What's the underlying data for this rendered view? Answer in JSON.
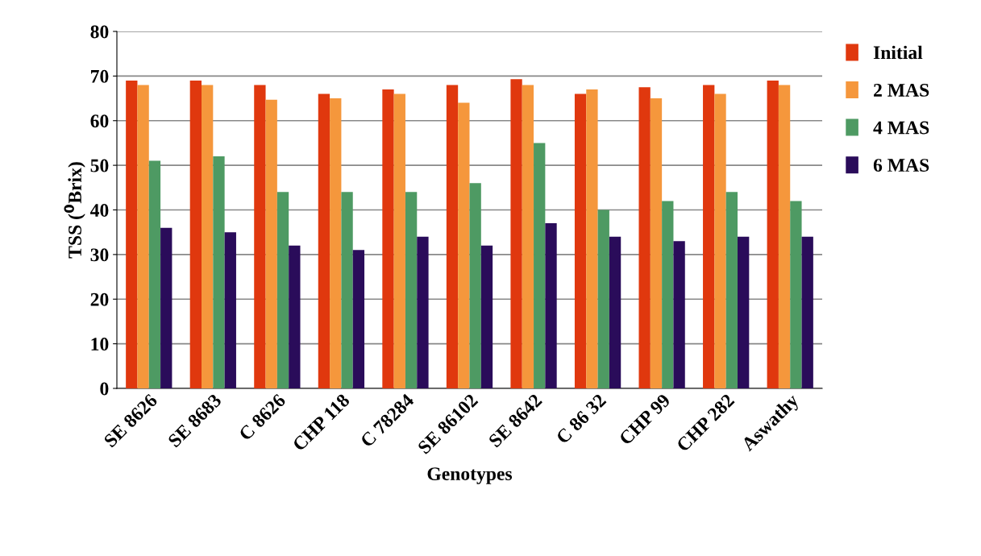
{
  "chart_data": {
    "type": "bar",
    "xlabel": "Genotypes",
    "ylabel": "TSS ($^{0}$Brix)",
    "categories": [
      "SE 8626",
      "SE 8683",
      "C 8626",
      "CHP 118",
      "C 78284",
      "SE 86102",
      "SE 8642",
      "C 86 32",
      "CHP 99",
      "CHP 282",
      "Aswathy"
    ],
    "series": [
      {
        "name": "Initial",
        "color": "#e0380e",
        "values": [
          69,
          69,
          68,
          66,
          67,
          68,
          69.3,
          66,
          67.5,
          68,
          69
        ]
      },
      {
        "name": "2 MAS",
        "color": "#f5973c",
        "values": [
          68,
          68,
          64.7,
          65,
          66,
          64,
          68,
          67,
          65,
          66,
          68
        ]
      },
      {
        "name": "4 MAS",
        "color": "#4e9a63",
        "values": [
          51,
          52,
          44,
          44,
          44,
          46,
          55,
          40,
          42,
          44,
          42
        ]
      },
      {
        "name": "6 MAS",
        "color": "#2a0c5a",
        "values": [
          36,
          35,
          32,
          31,
          34,
          32,
          37,
          34,
          33,
          34,
          34
        ]
      }
    ],
    "ylim": [
      0,
      80
    ],
    "yticks": [
      0,
      10,
      20,
      30,
      40,
      50,
      60,
      70,
      80
    ],
    "grid": "y",
    "legend": "right"
  }
}
